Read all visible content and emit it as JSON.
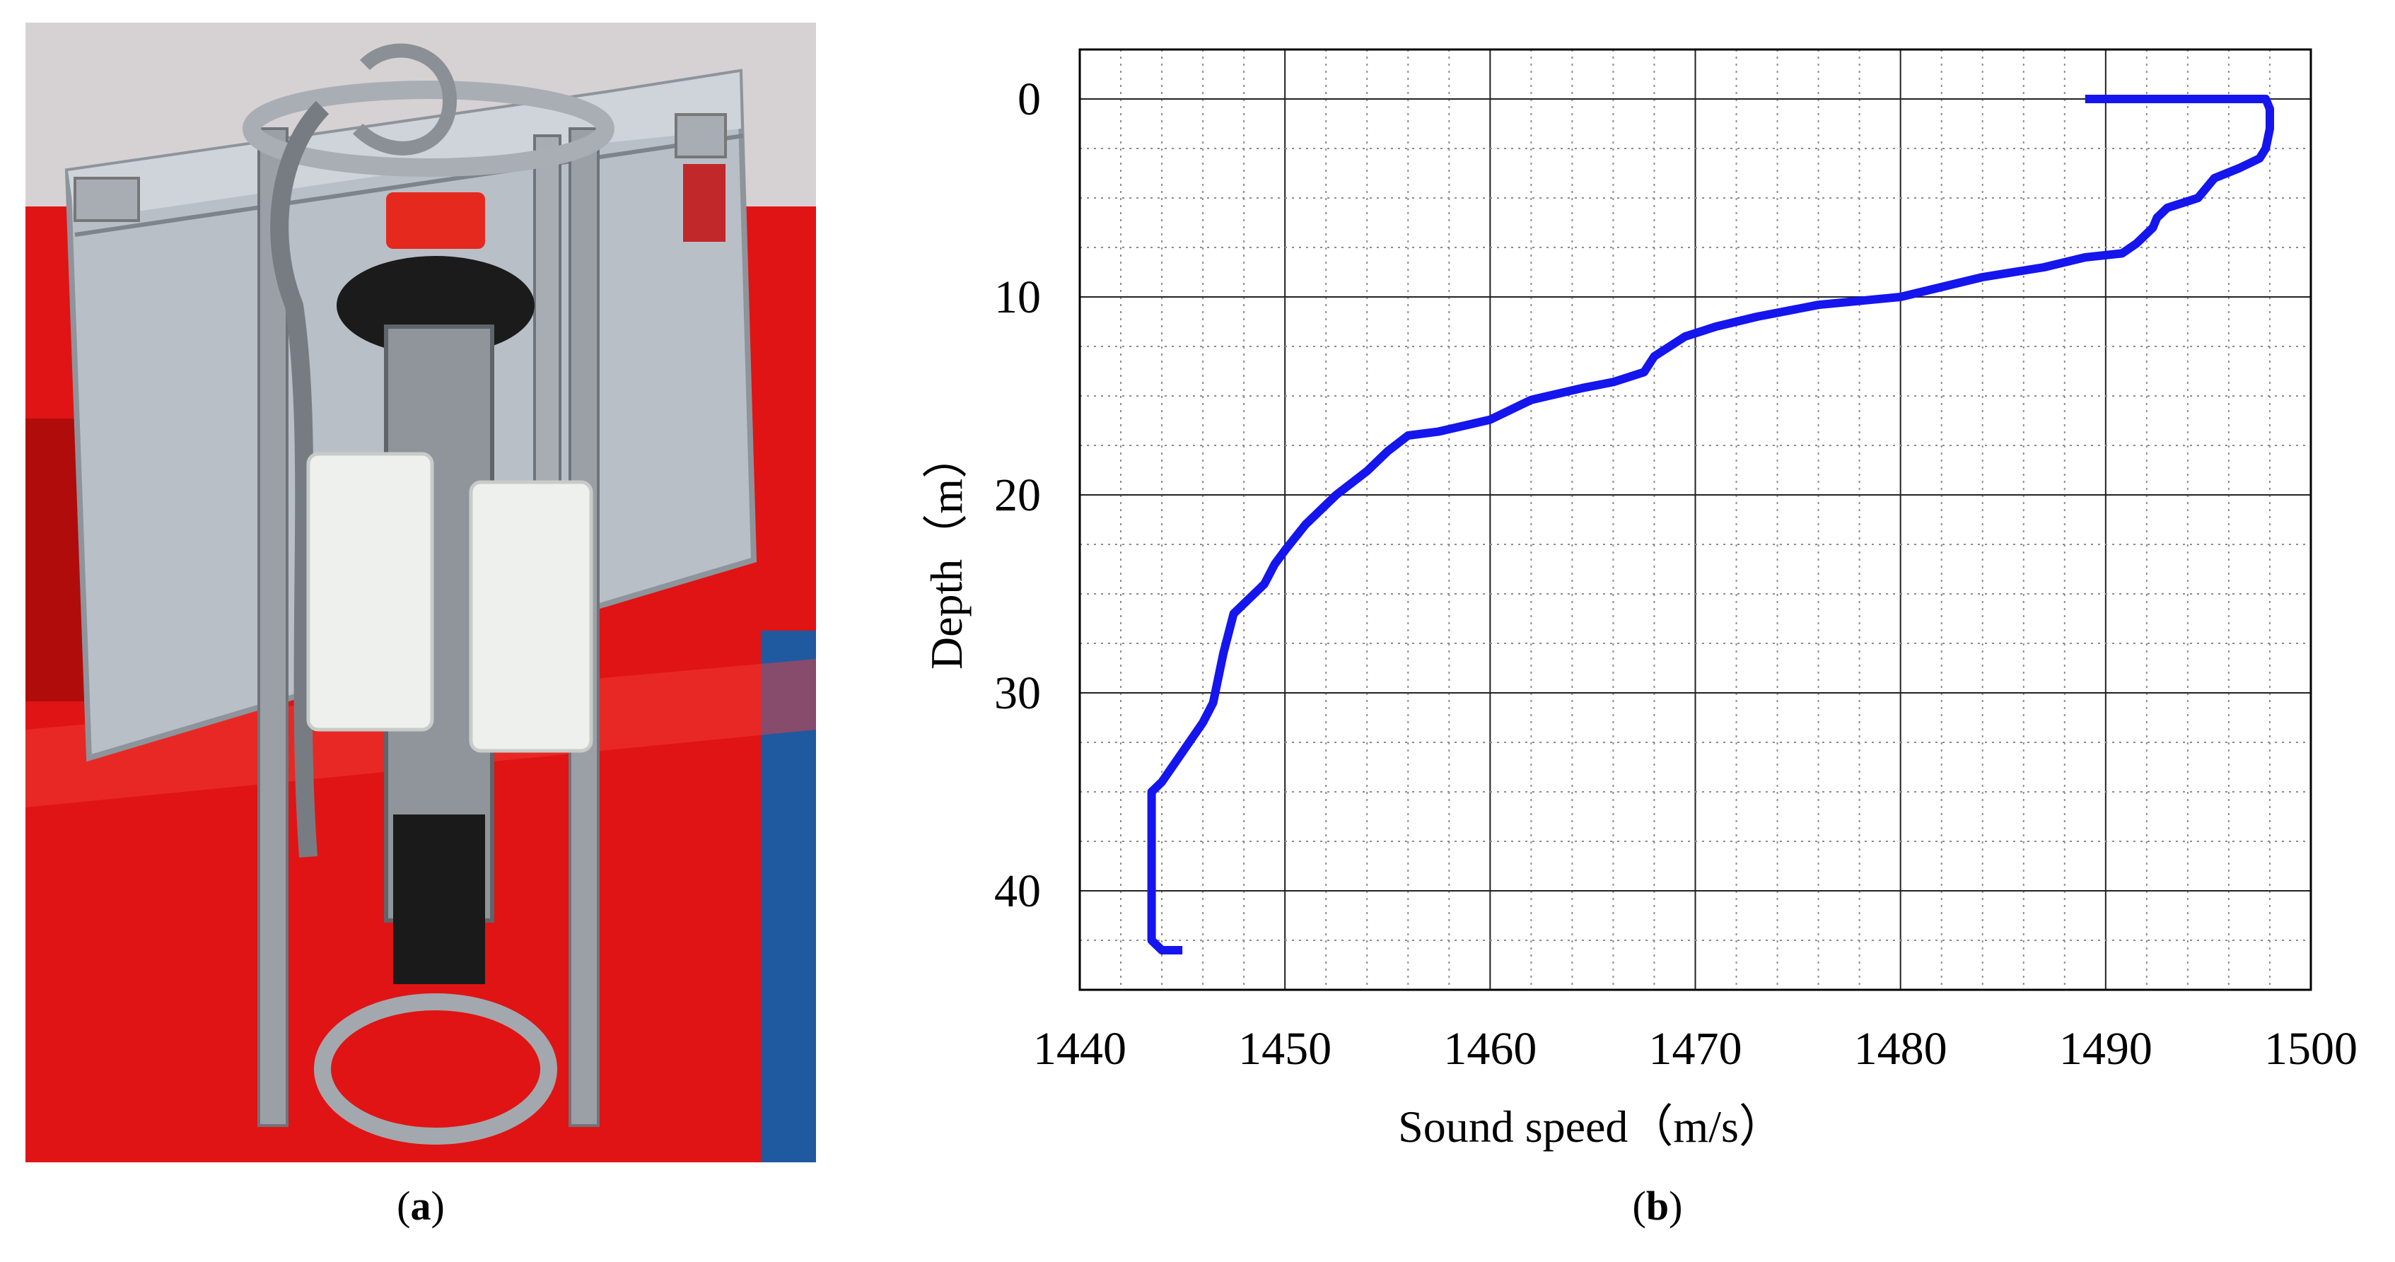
{
  "panels": {
    "a": {
      "label": "a"
    },
    "b": {
      "label": "b"
    }
  },
  "colors": {
    "curve": "#1515ee",
    "deck_red": "#e01414",
    "case_silver": "#b9bfc7",
    "probe_metal": "#9aa0a6",
    "float_white": "#eef0ee"
  },
  "chart_data": {
    "type": "line",
    "title": "",
    "xlabel": "Sound speed（m/s）",
    "ylabel": "Depth（m）",
    "xlim": [
      1440,
      1500
    ],
    "ylim": [
      -2.5,
      45
    ],
    "y_inverted": true,
    "grid": "major solid lines with dotted minor gridlines",
    "xticks": [
      1440,
      1450,
      1460,
      1470,
      1480,
      1490,
      1500
    ],
    "yticks": [
      0,
      10,
      20,
      30,
      40
    ],
    "series": [
      {
        "name": "",
        "color": "#1515ee",
        "points": [
          [
            1489.0,
            0.0
          ],
          [
            1492.0,
            0.0
          ],
          [
            1495.0,
            0.0
          ],
          [
            1497.8,
            0.0
          ],
          [
            1498.0,
            0.5
          ],
          [
            1498.0,
            1.5
          ],
          [
            1497.8,
            2.5
          ],
          [
            1497.5,
            3.0
          ],
          [
            1496.5,
            3.5
          ],
          [
            1495.3,
            4.0
          ],
          [
            1494.5,
            5.0
          ],
          [
            1493.0,
            5.5
          ],
          [
            1492.5,
            6.0
          ],
          [
            1492.3,
            6.5
          ],
          [
            1491.5,
            7.3
          ],
          [
            1490.8,
            7.8
          ],
          [
            1489.0,
            8.0
          ],
          [
            1487.0,
            8.5
          ],
          [
            1484.0,
            9.0
          ],
          [
            1482.0,
            9.5
          ],
          [
            1480.0,
            10.0
          ],
          [
            1476.0,
            10.4
          ],
          [
            1473.0,
            11.0
          ],
          [
            1471.0,
            11.5
          ],
          [
            1469.5,
            12.0
          ],
          [
            1468.0,
            13.0
          ],
          [
            1467.5,
            13.8
          ],
          [
            1466.0,
            14.3
          ],
          [
            1464.5,
            14.6
          ],
          [
            1462.0,
            15.2
          ],
          [
            1460.0,
            16.2
          ],
          [
            1457.5,
            16.8
          ],
          [
            1456.0,
            17.0
          ],
          [
            1455.0,
            17.8
          ],
          [
            1454.0,
            18.8
          ],
          [
            1452.5,
            20.0
          ],
          [
            1451.0,
            21.5
          ],
          [
            1450.0,
            22.8
          ],
          [
            1449.5,
            23.5
          ],
          [
            1449.0,
            24.5
          ],
          [
            1448.0,
            25.5
          ],
          [
            1447.5,
            26.0
          ],
          [
            1447.0,
            28.0
          ],
          [
            1446.5,
            30.5
          ],
          [
            1446.0,
            31.5
          ],
          [
            1445.0,
            33.0
          ],
          [
            1444.0,
            34.5
          ],
          [
            1443.5,
            35.0
          ],
          [
            1443.5,
            38.0
          ],
          [
            1443.5,
            42.5
          ],
          [
            1444.0,
            43.0
          ],
          [
            1445.0,
            43.0
          ]
        ]
      }
    ]
  }
}
